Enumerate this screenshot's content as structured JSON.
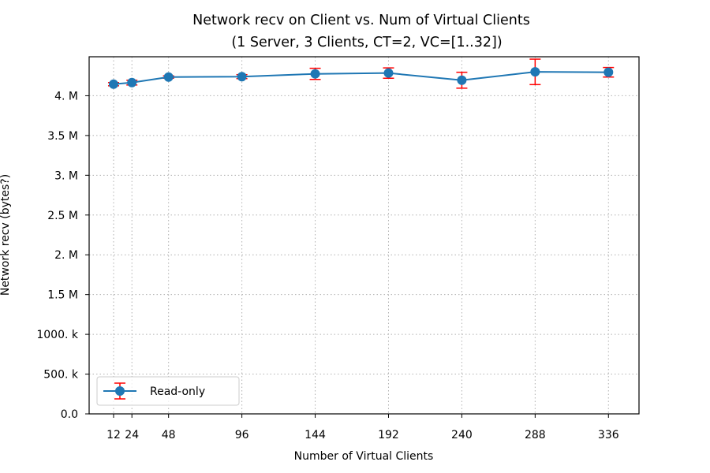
{
  "chart_data": {
    "type": "line",
    "title": "Network recv on Client vs. Num of Virtual Clients",
    "subtitle": "(1 Server, 3 Clients, CT=2, VC=[1..32])",
    "xlabel": "Number of Virtual Clients",
    "ylabel": "Network recv (bytes?)",
    "x": [
      12,
      24,
      48,
      96,
      144,
      192,
      240,
      288,
      336
    ],
    "xticks": [
      {
        "value": 12,
        "label": "12"
      },
      {
        "value": 24,
        "label": "24"
      },
      {
        "value": 48,
        "label": "48"
      },
      {
        "value": 96,
        "label": "96"
      },
      {
        "value": 144,
        "label": "144"
      },
      {
        "value": 192,
        "label": "192"
      },
      {
        "value": 240,
        "label": "240"
      },
      {
        "value": 288,
        "label": "288"
      },
      {
        "value": 336,
        "label": "336"
      }
    ],
    "yticks": [
      {
        "value": 0,
        "label": "0.0"
      },
      {
        "value": 500000,
        "label": "500. k"
      },
      {
        "value": 1000000,
        "label": "1000. k"
      },
      {
        "value": 1500000,
        "label": "1.5 M"
      },
      {
        "value": 2000000,
        "label": "2. M"
      },
      {
        "value": 2500000,
        "label": "2.5 M"
      },
      {
        "value": 3000000,
        "label": "3. M"
      },
      {
        "value": 3500000,
        "label": "3.5 M"
      },
      {
        "value": 4000000,
        "label": "4. M"
      }
    ],
    "xlim": [
      -4,
      356
    ],
    "ylim": [
      0,
      4490000
    ],
    "grid": true,
    "legend_position": "lower-left",
    "series": [
      {
        "name": "Read-only",
        "color": "#1f77b4",
        "error_color": "#ff0000",
        "values": [
          4145000,
          4165000,
          4235000,
          4240000,
          4275000,
          4285000,
          4195000,
          4300000,
          4295000
        ],
        "errors": [
          20000,
          30000,
          15000,
          25000,
          70000,
          65000,
          100000,
          160000,
          60000
        ]
      }
    ]
  }
}
